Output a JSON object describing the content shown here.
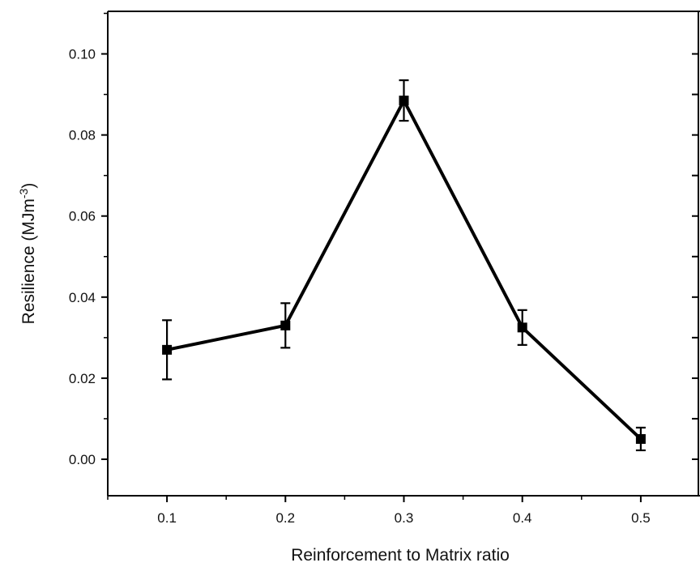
{
  "chart_data": {
    "type": "line",
    "title": "",
    "xlabel": "Reinforcement to Matrix ratio",
    "ylabel": "Resilience (MJm",
    "ylabel_superscript": "-3",
    "ylabel_suffix": ")",
    "xlim": [
      0.05,
      0.55
    ],
    "ylim": [
      -0.009,
      0.1105
    ],
    "x_ticks": [
      0.1,
      0.2,
      0.3,
      0.4,
      0.5
    ],
    "x_tick_labels": [
      "0.1",
      "0.2",
      "0.3",
      "0.4",
      "0.5"
    ],
    "y_ticks": [
      0.0,
      0.02,
      0.04,
      0.06,
      0.08,
      0.1
    ],
    "y_tick_labels": [
      "0.00",
      "0.02",
      "0.04",
      "0.06",
      "0.08",
      "0.10"
    ],
    "grid": false,
    "marker": "square",
    "color": "#000000",
    "series": [
      {
        "x": [
          0.1,
          0.2,
          0.3,
          0.4,
          0.5
        ],
        "y": [
          0.027,
          0.033,
          0.0885,
          0.0325,
          0.005
        ],
        "error": [
          0.0073,
          0.0055,
          0.005,
          0.0043,
          0.0028
        ]
      }
    ]
  }
}
